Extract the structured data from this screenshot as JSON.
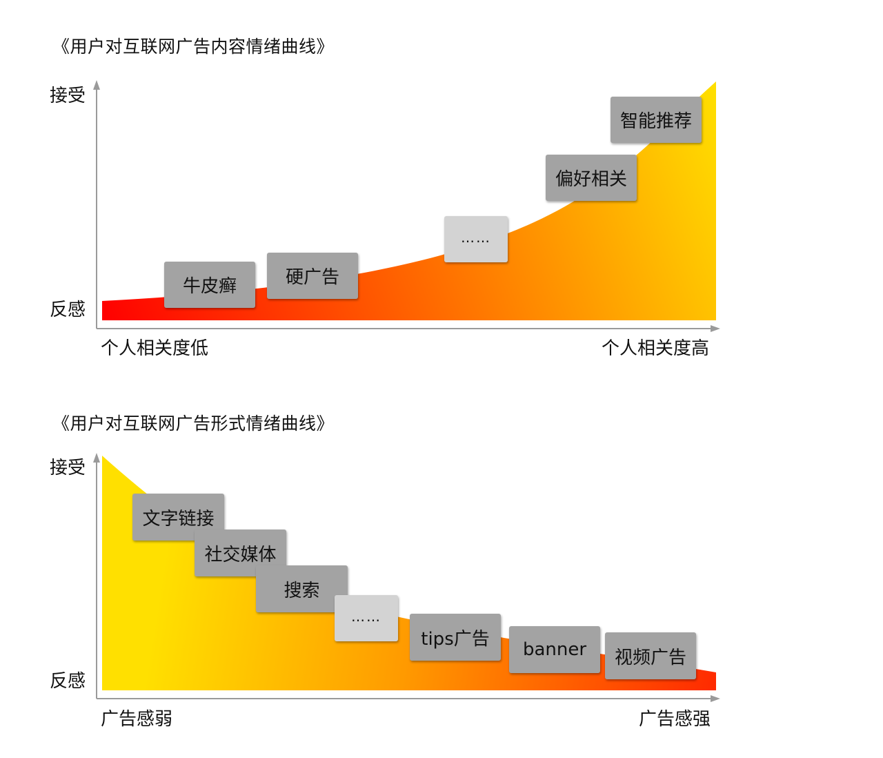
{
  "diagram1": {
    "title": "《用户对互联网广告内容情绪曲线》",
    "y_top_label": "接受",
    "y_bottom_label": "反感",
    "x_left_label": "个人相关度低",
    "x_right_label": "个人相关度高",
    "gradient_colors": {
      "start": "#ff0000",
      "mid": "#ff7a00",
      "end": "#ffe000"
    },
    "items": [
      "牛皮癣",
      "硬广告",
      "……",
      "偏好相关",
      "智能推荐"
    ]
  },
  "diagram2": {
    "title": "《用户对互联网广告形式情绪曲线》",
    "y_top_label": "接受",
    "y_bottom_label": "反感",
    "x_left_label": "广告感弱",
    "x_right_label": "广告感强",
    "gradient_colors": {
      "start": "#ffe000",
      "mid": "#ff9a00",
      "end": "#ff2a00"
    },
    "items": [
      "文字链接",
      "社交媒体",
      "搜索",
      "……",
      "tips广告",
      "banner",
      "视频广告"
    ]
  },
  "colors": {
    "box": "#a3a3a3",
    "box_light": "#d3d3d3",
    "axis": "#9a9a9a"
  }
}
